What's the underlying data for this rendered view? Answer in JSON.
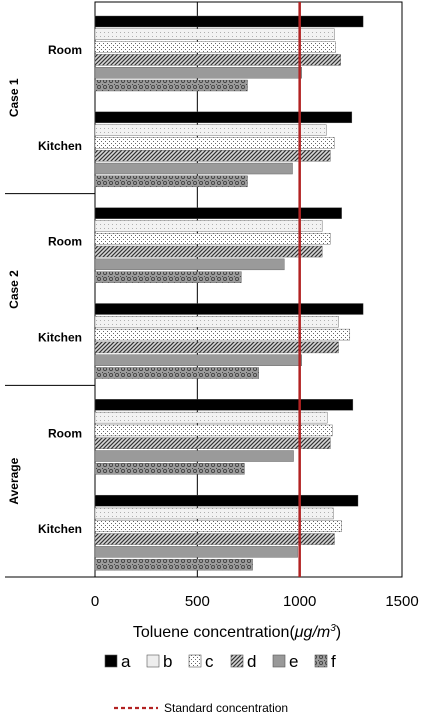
{
  "chart_data": {
    "type": "bar",
    "orientation": "horizontal",
    "xlabel_prefix": "Toluene concentration(",
    "xlabel_unit_mu": "μ",
    "xlabel_unit_rest": "g/m",
    "xlabel_unit_sup": "3",
    "xlabel_suffix": ")",
    "xlim": [
      0,
      1500
    ],
    "xticks": [
      0,
      500,
      1000,
      1500
    ],
    "grid": true,
    "legend_placement": "bottom",
    "groups": [
      {
        "label": "Case 1",
        "items": [
          "Room",
          "Kitchen"
        ]
      },
      {
        "label": "Case 2",
        "items": [
          "Room",
          "Kitchen"
        ]
      },
      {
        "label": "Average",
        "items": [
          "Room",
          "Kitchen"
        ]
      }
    ],
    "categories": [
      "Room",
      "Kitchen",
      "Room",
      "Kitchen",
      "Room",
      "Kitchen"
    ],
    "series": [
      {
        "name": "a",
        "values": [
          1310,
          1255,
          1205,
          1310,
          1260,
          1285
        ]
      },
      {
        "name": "b",
        "values": [
          1170,
          1130,
          1110,
          1190,
          1135,
          1165
        ]
      },
      {
        "name": "c",
        "values": [
          1175,
          1170,
          1150,
          1245,
          1160,
          1205
        ]
      },
      {
        "name": "d",
        "values": [
          1200,
          1150,
          1110,
          1190,
          1150,
          1170
        ]
      },
      {
        "name": "e",
        "values": [
          1010,
          965,
          925,
          1010,
          970,
          990
        ]
      },
      {
        "name": "f",
        "values": [
          745,
          745,
          715,
          800,
          730,
          770
        ]
      }
    ],
    "reference_line": {
      "name": "Standard concentration",
      "value": 1000,
      "color": "#b22222"
    },
    "colors": {
      "a": "#000000",
      "b": "#eeeeee",
      "c": "#ffffff",
      "d": "#777777",
      "e": "#999999",
      "f": "#888888"
    }
  }
}
